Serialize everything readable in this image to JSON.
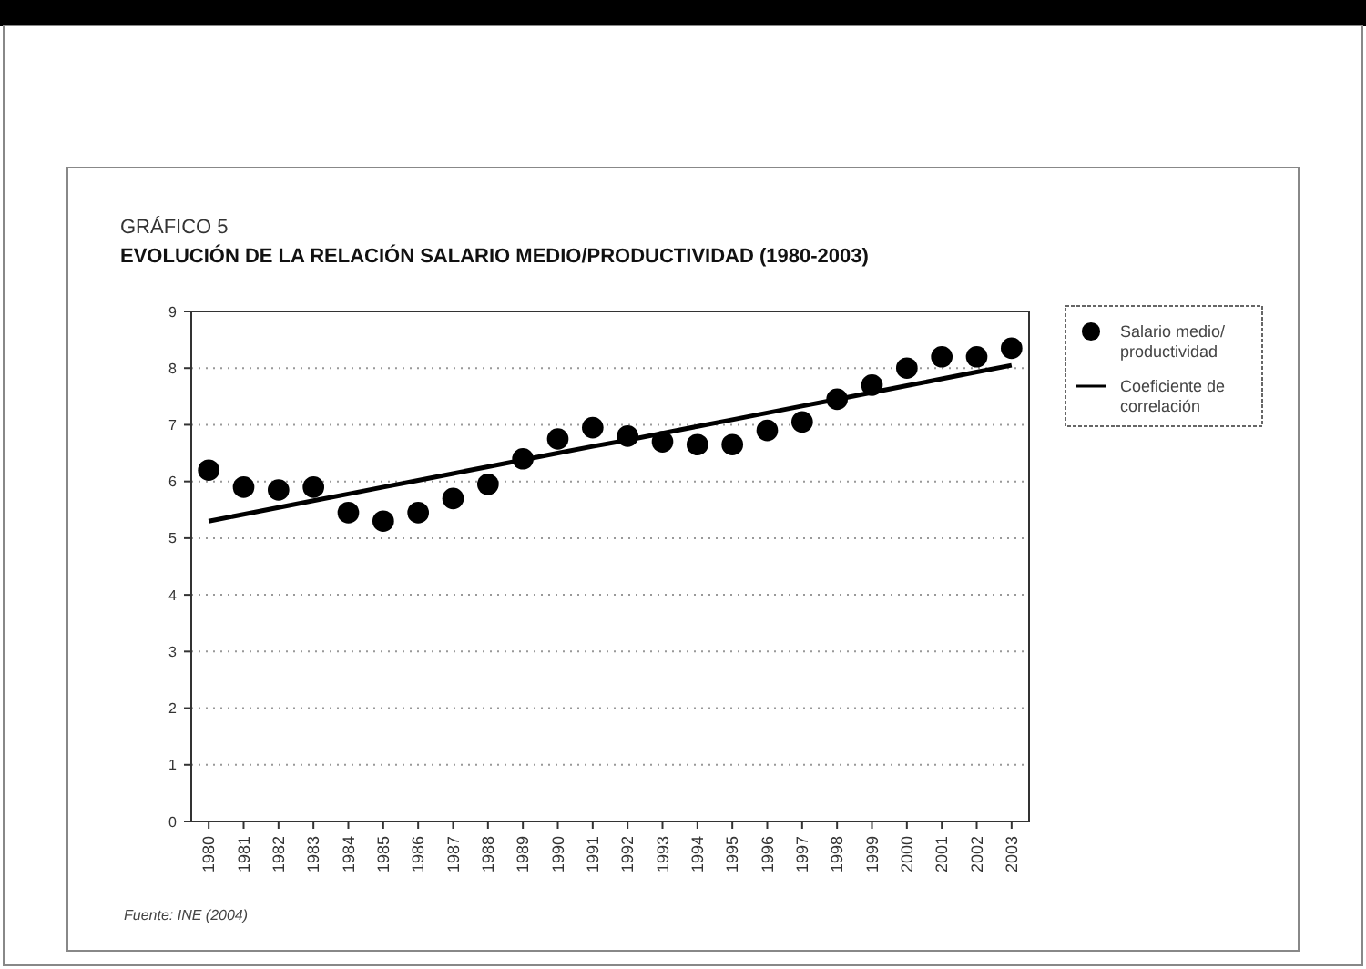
{
  "chart_data": {
    "type": "scatter",
    "title": "GRÁFICO 5",
    "subtitle": "EVOLUCIÓN DE LA RELACIÓN SALARIO MEDIO/PRODUCTIVIDAD (1980-2003)",
    "categories": [
      "1980",
      "1981",
      "1982",
      "1983",
      "1984",
      "1985",
      "1986",
      "1987",
      "1988",
      "1989",
      "1990",
      "1991",
      "1992",
      "1993",
      "1994",
      "1995",
      "1996",
      "1997",
      "1998",
      "1999",
      "2000",
      "2001",
      "2002",
      "2003"
    ],
    "series": [
      {
        "name": "Salario medio/ productividad",
        "color": "#000000",
        "marker": "circle",
        "values": [
          6.2,
          5.9,
          5.85,
          5.9,
          5.45,
          5.3,
          5.45,
          5.7,
          5.95,
          6.4,
          6.75,
          6.95,
          6.8,
          6.7,
          6.65,
          6.65,
          6.9,
          7.05,
          7.45,
          7.7,
          8.0,
          8.2,
          8.2,
          8.35
        ]
      },
      {
        "name": "Coeficiente de correlación",
        "type": "line",
        "color": "#000000",
        "values": [
          5.3,
          5.42,
          5.54,
          5.66,
          5.78,
          5.9,
          6.02,
          6.14,
          6.26,
          6.38,
          6.5,
          6.62,
          6.73,
          6.85,
          6.97,
          7.09,
          7.21,
          7.33,
          7.45,
          7.57,
          7.69,
          7.81,
          7.93,
          8.05
        ]
      }
    ],
    "ylim": [
      0,
      9
    ],
    "yticks": [
      0,
      1,
      2,
      3,
      4,
      5,
      6,
      7,
      8,
      9
    ],
    "grid": "y",
    "legend": "right",
    "annotations": [
      "Fuente: INE (2004)"
    ]
  }
}
